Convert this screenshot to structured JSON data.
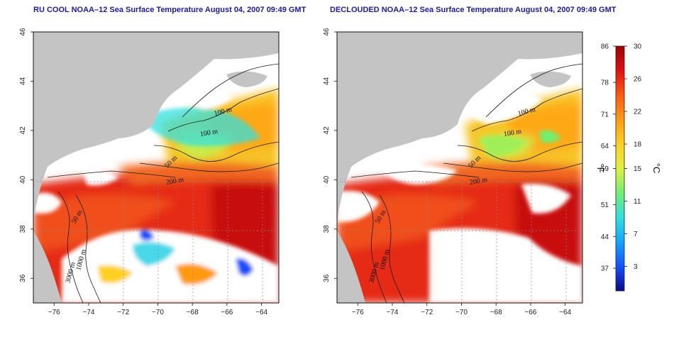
{
  "panels": [
    {
      "title": "RU COOL NOAA–12 Sea Surface Temperature August 04, 2007 09:49 GMT"
    },
    {
      "title": "DECLOUDED NOAA–12 Sea Surface Temperature August 04, 2007 09:49 GMT"
    }
  ],
  "map": {
    "x_ticks": [
      "−76",
      "−74",
      "−72",
      "−70",
      "−68",
      "−66",
      "−64"
    ],
    "y_ticks": [
      "36",
      "38",
      "40",
      "42",
      "44",
      "46"
    ],
    "lon_range": [
      -77.2,
      -63.0
    ],
    "lat_range": [
      35.0,
      46.0
    ],
    "contour_labels": [
      "100 m",
      "100 m",
      "50 m",
      "200 m",
      "50 m",
      "1000 m",
      "3000 m"
    ]
  },
  "colorbar": {
    "fahrenheit_ticks": [
      "86",
      "78",
      "71",
      "64",
      "59",
      "51",
      "44",
      "37"
    ],
    "celsius_ticks": [
      "30",
      "26",
      "22",
      "18",
      "15",
      "11",
      "7",
      "3"
    ],
    "fahrenheit_unit": "°F",
    "celsius_unit": "°C",
    "range_c": [
      0,
      30
    ],
    "colors": [
      "#0a0a8c",
      "#1450ff",
      "#10a6ff",
      "#30e0e0",
      "#70f070",
      "#e0f040",
      "#ffd020",
      "#ff9a10",
      "#ff5a10",
      "#e01010",
      "#a00000"
    ]
  },
  "colors": {
    "land": "#c4c4c4",
    "cloud": "#ffffff",
    "title": "#1a1aa6"
  }
}
